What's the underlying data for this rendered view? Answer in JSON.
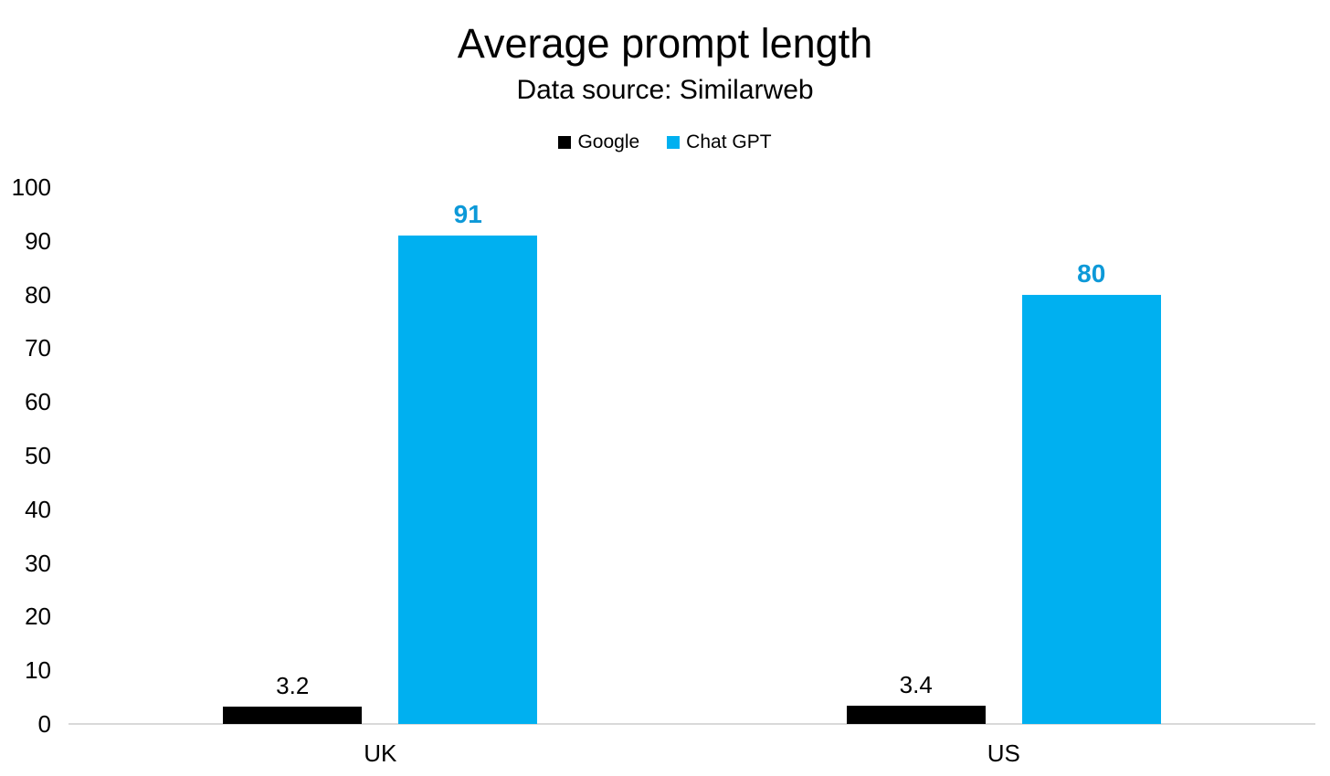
{
  "chart_data": {
    "type": "bar",
    "title": "Average prompt length",
    "subtitle": "Data source: Similarweb",
    "categories": [
      "UK",
      "US"
    ],
    "series": [
      {
        "name": "Google",
        "color": "#000000",
        "label_color": "#000000",
        "label_bold": false,
        "values": [
          3.2,
          3.4
        ],
        "labels": [
          "3.2",
          "3.4"
        ]
      },
      {
        "name": "Chat GPT",
        "color": "#00B0F0",
        "label_color": "#0D99D8",
        "label_bold": true,
        "values": [
          91,
          80
        ],
        "labels": [
          "91",
          "80"
        ]
      }
    ],
    "xlabel": "",
    "ylabel": "",
    "ylim": [
      0,
      100
    ],
    "yticks": [
      0,
      10,
      20,
      30,
      40,
      50,
      60,
      70,
      80,
      90,
      100
    ],
    "grid": false,
    "legend_position": "top-center",
    "axis_line_color": "#D9D9D9",
    "background_color": "#ffffff",
    "text_color": "#000000"
  }
}
